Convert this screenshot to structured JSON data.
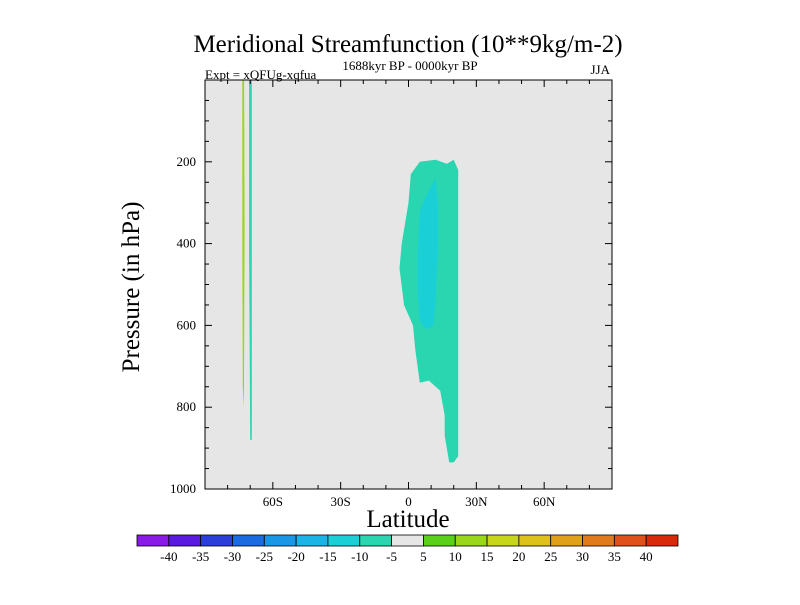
{
  "chart_data": {
    "type": "contour",
    "title": "Meridional Streamfunction (10**9kg/m-2)",
    "subtitle_left": "Expt = xQFUg-xqfua",
    "subtitle_center": "1688kyr BP - 0000kyr BP",
    "subtitle_right": "JJA",
    "xlabel": "Latitude",
    "ylabel": "Pressure (in hPa)",
    "xlim": [
      -90,
      90
    ],
    "ylim": [
      0,
      1000
    ],
    "y_inverted": true,
    "x_ticks": [
      {
        "value": -60,
        "label": "60S"
      },
      {
        "value": -30,
        "label": "30S"
      },
      {
        "value": 0,
        "label": "0"
      },
      {
        "value": 30,
        "label": "30N"
      },
      {
        "value": 60,
        "label": "60N"
      }
    ],
    "y_ticks": [
      {
        "value": 200,
        "label": "200"
      },
      {
        "value": 400,
        "label": "400"
      },
      {
        "value": 600,
        "label": "600"
      },
      {
        "value": 800,
        "label": "800"
      },
      {
        "value": 1000,
        "label": "1000"
      }
    ],
    "background_color": "#e6e6e6",
    "colorbar": {
      "levels": [
        "-40",
        "-35",
        "-30",
        "-25",
        "-20",
        "-15",
        "-10",
        "-5",
        "5",
        "10",
        "15",
        "20",
        "25",
        "30",
        "35",
        "40"
      ],
      "colors": [
        "#8a1ae6",
        "#5a1ae0",
        "#2b3fd8",
        "#1a6ae0",
        "#1a96e6",
        "#1ab4e6",
        "#1ad0d6",
        "#2ad6b0",
        "#e6e6e6",
        "#5ad01a",
        "#9ad61a",
        "#c8d61a",
        "#dcc21a",
        "#e0a01a",
        "#e07a1a",
        "#e0501a",
        "#d82a0a"
      ]
    },
    "regions": [
      {
        "name": "tropical-cell-outer",
        "value": -5,
        "color": "#2ad6b0",
        "polygon": [
          [
            5,
            200
          ],
          [
            12,
            195
          ],
          [
            17,
            205
          ],
          [
            20,
            195
          ],
          [
            22,
            220
          ],
          [
            22,
            920
          ],
          [
            20,
            935
          ],
          [
            18,
            935
          ],
          [
            16,
            870
          ],
          [
            16,
            820
          ],
          [
            14,
            760
          ],
          [
            9,
            735
          ],
          [
            5,
            740
          ],
          [
            3,
            660
          ],
          [
            2,
            600
          ],
          [
            -2,
            550
          ],
          [
            -4,
            460
          ],
          [
            -3,
            400
          ],
          [
            0,
            300
          ],
          [
            1,
            230
          ],
          [
            5,
            200
          ]
        ]
      },
      {
        "name": "tropical-cell-core",
        "value": -10,
        "color": "#1ad0d6",
        "polygon": [
          [
            5,
            320
          ],
          [
            9,
            270
          ],
          [
            12,
            240
          ],
          [
            13,
            300
          ],
          [
            13,
            420
          ],
          [
            12,
            540
          ],
          [
            11,
            600
          ],
          [
            8,
            610
          ],
          [
            5,
            590
          ],
          [
            4,
            520
          ],
          [
            4,
            420
          ],
          [
            5,
            320
          ]
        ]
      },
      {
        "name": "polar-strip-negative",
        "value": -5,
        "color": "#2ad6b0",
        "polygon": [
          [
            -70.5,
            0
          ],
          [
            -69.3,
            0
          ],
          [
            -69.3,
            880
          ],
          [
            -70,
            880
          ],
          [
            -70.5,
            420
          ],
          [
            -70.5,
            0
          ]
        ]
      },
      {
        "name": "polar-strip-positive",
        "value": 10,
        "color": "#9ad61a",
        "polygon": [
          [
            -73.5,
            0
          ],
          [
            -72.7,
            0
          ],
          [
            -72.5,
            360
          ],
          [
            -72.8,
            800
          ],
          [
            -73.3,
            750
          ],
          [
            -73.5,
            400
          ],
          [
            -73.5,
            0
          ]
        ]
      }
    ]
  }
}
